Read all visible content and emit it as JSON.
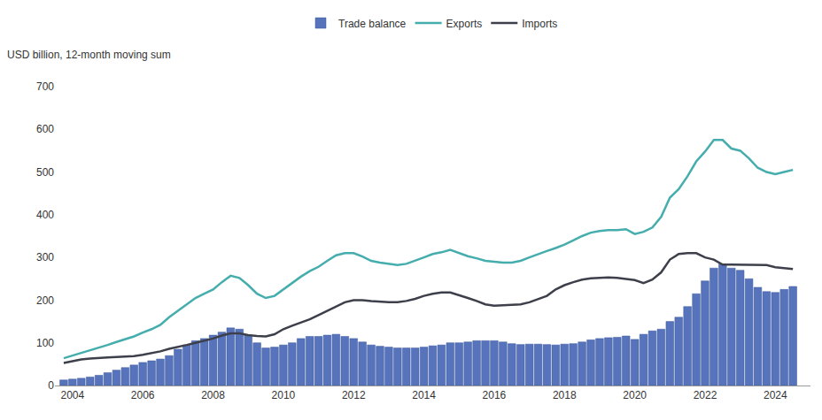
{
  "chart_data": {
    "type": "combo",
    "subtitle": "USD billion, 12-month moving sum",
    "legend": "top",
    "grid": false,
    "xlim": [
      2003.5,
      2025.0
    ],
    "xticks": [
      2004,
      2006,
      2008,
      2010,
      2012,
      2014,
      2016,
      2018,
      2020,
      2022,
      2024
    ],
    "ylim": [
      0,
      700
    ],
    "yticks": [
      0,
      100,
      200,
      300,
      400,
      500,
      600,
      700
    ],
    "x": [
      2003.75,
      2004.0,
      2004.25,
      2004.5,
      2004.75,
      2005.0,
      2005.25,
      2005.5,
      2005.75,
      2006.0,
      2006.25,
      2006.5,
      2006.75,
      2007.0,
      2007.25,
      2007.5,
      2007.75,
      2008.0,
      2008.25,
      2008.5,
      2008.75,
      2009.0,
      2009.25,
      2009.5,
      2009.75,
      2010.0,
      2010.25,
      2010.5,
      2010.75,
      2011.0,
      2011.25,
      2011.5,
      2011.75,
      2012.0,
      2012.25,
      2012.5,
      2012.75,
      2013.0,
      2013.25,
      2013.5,
      2013.75,
      2014.0,
      2014.25,
      2014.5,
      2014.75,
      2015.0,
      2015.25,
      2015.5,
      2015.75,
      2016.0,
      2016.25,
      2016.5,
      2016.75,
      2017.0,
      2017.25,
      2017.5,
      2017.75,
      2018.0,
      2018.25,
      2018.5,
      2018.75,
      2019.0,
      2019.25,
      2019.5,
      2019.75,
      2020.0,
      2020.25,
      2020.5,
      2020.75,
      2021.0,
      2021.25,
      2021.5,
      2021.75,
      2022.0,
      2022.25,
      2022.5,
      2022.75,
      2023.0,
      2023.25,
      2023.5,
      2023.75,
      2024.0,
      2024.25,
      2024.5
    ],
    "series": [
      {
        "name": "Trade balance",
        "type": "bar",
        "color": "#5673bb",
        "values": [
          13,
          15,
          17,
          20,
          24,
          30,
          36,
          42,
          48,
          54,
          58,
          62,
          70,
          85,
          95,
          105,
          110,
          118,
          125,
          135,
          132,
          118,
          100,
          88,
          90,
          95,
          100,
          110,
          115,
          115,
          118,
          120,
          115,
          110,
          102,
          95,
          92,
          90,
          88,
          88,
          88,
          90,
          93,
          95,
          100,
          100,
          102,
          105,
          105,
          105,
          102,
          98,
          96,
          97,
          97,
          96,
          95,
          97,
          98,
          102,
          107,
          110,
          112,
          113,
          116,
          108,
          120,
          128,
          132,
          150,
          160,
          185,
          215,
          245,
          275,
          285,
          275,
          270,
          250,
          230,
          220,
          218,
          225,
          232
        ]
      },
      {
        "name": "Exports",
        "type": "line",
        "color": "#45adad",
        "values": [
          64,
          70,
          76,
          82,
          88,
          95,
          102,
          108,
          115,
          124,
          132,
          142,
          160,
          175,
          190,
          205,
          215,
          225,
          242,
          257,
          252,
          235,
          215,
          205,
          210,
          225,
          240,
          255,
          268,
          278,
          292,
          305,
          310,
          310,
          302,
          292,
          288,
          285,
          282,
          285,
          292,
          300,
          308,
          312,
          318,
          310,
          303,
          298,
          292,
          290,
          288,
          288,
          292,
          300,
          308,
          315,
          322,
          330,
          340,
          350,
          358,
          362,
          364,
          364,
          366,
          355,
          360,
          370,
          395,
          440,
          460,
          490,
          525,
          548,
          575,
          575,
          555,
          550,
          532,
          510,
          500,
          495,
          500,
          505
        ]
      },
      {
        "name": "Imports",
        "type": "line",
        "color": "#3d404b",
        "values": [
          53,
          57,
          61,
          63,
          65,
          66,
          67,
          68,
          69,
          72,
          76,
          80,
          86,
          90,
          95,
          100,
          105,
          110,
          117,
          122,
          122,
          118,
          116,
          115,
          120,
          132,
          140,
          148,
          155,
          165,
          175,
          185,
          195,
          200,
          200,
          198,
          196,
          195,
          195,
          198,
          203,
          210,
          215,
          218,
          218,
          212,
          205,
          198,
          190,
          187,
          188,
          188,
          190,
          195,
          202,
          210,
          225,
          235,
          242,
          248,
          251,
          252,
          253,
          252,
          250,
          247,
          240,
          248,
          265,
          295,
          308,
          310,
          310,
          300,
          295,
          283,
          283,
          283,
          283,
          282,
          282,
          277,
          275,
          273
        ]
      }
    ]
  }
}
